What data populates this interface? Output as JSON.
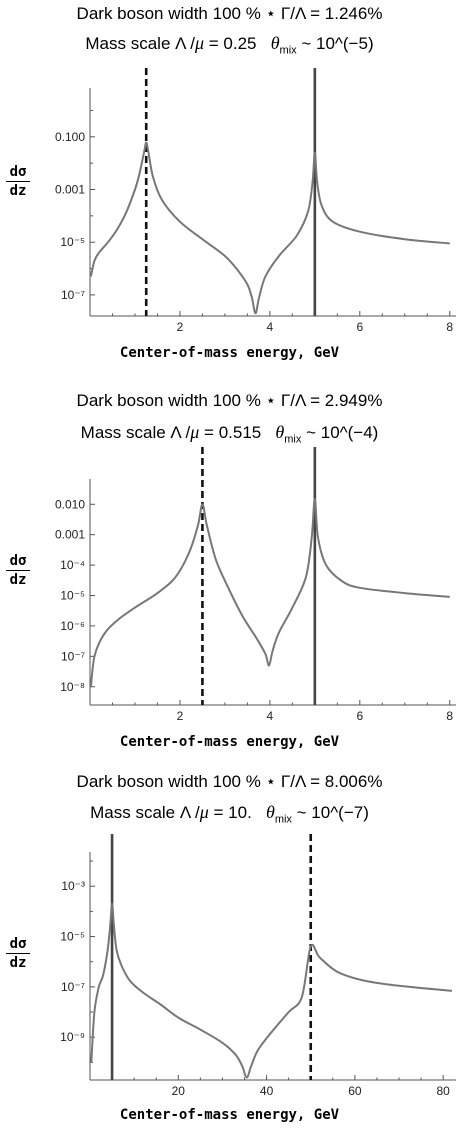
{
  "chart_data": [
    {
      "type": "line",
      "title_line1": "Dark boson width 100 % ⋆ Γ/Λ = 1.246%",
      "title_line2_pre": "Mass scale Λ /",
      "title_mu": "μ",
      "title_line2_mid": " = 0.25",
      "title_theta": "θ",
      "title_sub": "mix",
      "title_line2_post": " ~ 10^(−5)",
      "ylabel_num": "dσ",
      "ylabel_den": "dz",
      "xlabel": "Center-of-mass energy, GeV",
      "xlim": [
        0,
        8.05
      ],
      "ylog": true,
      "ylim_exp": [
        -7.8,
        0.7
      ],
      "xticks": [
        2,
        4,
        6,
        8
      ],
      "xtick_labels": [
        "2",
        "4",
        "6",
        "8"
      ],
      "yticks_exp": [
        -1,
        -3,
        -5,
        -7
      ],
      "ytick_labels": [
        "0.100",
        "0.001",
        "10⁻⁵",
        "10⁻⁷"
      ],
      "dashed_line_x": 1.25,
      "solid_line_x": 5.0,
      "series": [
        {
          "line_color": "#777777",
          "x": [
            0.02,
            0.1,
            0.2,
            0.4,
            0.6,
            0.8,
            1.0,
            1.1,
            1.2,
            1.25,
            1.3,
            1.4,
            1.6,
            2.0,
            2.5,
            3.0,
            3.3,
            3.5,
            3.6,
            3.68,
            3.76,
            3.9,
            4.2,
            4.6,
            4.85,
            4.95,
            5.0,
            5.05,
            5.15,
            5.4,
            6.0,
            7.0,
            8.0
          ],
          "y": [
            5e-07,
            2e-06,
            4e-06,
            1e-05,
            3e-05,
            0.00013,
            0.001,
            0.004,
            0.025,
            0.06,
            0.025,
            0.003,
            0.0004,
            6e-05,
            1.3e-05,
            3e-06,
            8e-07,
            2.5e-07,
            8e-08,
            2e-08,
            8e-08,
            5e-07,
            3e-06,
            1.8e-05,
            0.00015,
            0.002,
            0.025,
            0.002,
            0.00025,
            6e-05,
            2.5e-05,
            1.3e-05,
            9e-06
          ]
        }
      ]
    },
    {
      "type": "line",
      "title_line1": "Dark boson width 100 % ⋆ Γ/Λ = 2.949%",
      "title_line2_pre": "Mass scale Λ /",
      "title_mu": "μ",
      "title_line2_mid": " = 0.515",
      "title_theta": "θ",
      "title_sub": "mix",
      "title_line2_post": " ~ 10^(−4)",
      "ylabel_num": "dσ",
      "ylabel_den": "dz",
      "xlabel": "Center-of-mass energy, GeV",
      "xlim": [
        0,
        8.05
      ],
      "ylog": true,
      "ylim_exp": [
        -8.6,
        -1.3
      ],
      "xticks": [
        2,
        4,
        6,
        8
      ],
      "xtick_labels": [
        "2",
        "4",
        "6",
        "8"
      ],
      "yticks_exp": [
        -2,
        -3,
        -4,
        -5,
        -6,
        -7,
        -8
      ],
      "ytick_labels": [
        "0.010",
        "0.001",
        "10⁻⁴",
        "10⁻⁵",
        "10⁻⁶",
        "10⁻⁷",
        "10⁻⁸"
      ],
      "dashed_line_x": 2.5,
      "solid_line_x": 5.0,
      "series": [
        {
          "line_color": "#777777",
          "x": [
            0.02,
            0.1,
            0.3,
            0.6,
            1.0,
            1.5,
            1.9,
            2.2,
            2.4,
            2.5,
            2.6,
            2.8,
            3.1,
            3.4,
            3.7,
            3.9,
            3.98,
            4.06,
            4.2,
            4.5,
            4.8,
            4.93,
            5.0,
            5.07,
            5.25,
            5.6,
            6.0,
            7.0,
            8.0
          ],
          "y": [
            1e-08,
            1e-07,
            5e-07,
            1.5e-06,
            4e-06,
            1.2e-05,
            4e-05,
            0.00025,
            0.002,
            0.01,
            0.002,
            0.00015,
            1.5e-05,
            2e-06,
            4e-07,
            1.2e-07,
            5e-08,
            1.5e-07,
            6e-07,
            4e-06,
            4e-05,
            0.0008,
            0.015,
            0.0008,
            0.0001,
            3e-05,
            1.8e-05,
            1.2e-05,
            9e-06
          ]
        }
      ]
    },
    {
      "type": "line",
      "title_line1": "Dark boson width 100 % ⋆ Γ/Λ = 8.006%",
      "title_line2_pre": "Mass scale Λ /",
      "title_mu": "μ",
      "title_line2_mid": " = 10.",
      "title_theta": "θ",
      "title_sub": "mix",
      "title_line2_post": " ~ 10^(−7)",
      "ylabel_num": "dσ",
      "ylabel_den": "dz",
      "xlabel": "Center-of-mass energy, GeV",
      "xlim": [
        0,
        82
      ],
      "ylog": true,
      "ylim_exp": [
        -10.7,
        -1.8
      ],
      "xticks": [
        20,
        40,
        60,
        80
      ],
      "xtick_labels": [
        "20",
        "40",
        "60",
        "80"
      ],
      "yticks_exp": [
        -3,
        -5,
        -7,
        -9
      ],
      "ytick_labels": [
        "10⁻³",
        "10⁻⁵",
        "10⁻⁷",
        "10⁻⁹"
      ],
      "dashed_line_x": 50,
      "solid_line_x": 5,
      "series": [
        {
          "line_color": "#777777",
          "x": [
            0.3,
            1.0,
            2.0,
            3.0,
            4.0,
            4.6,
            5.0,
            5.4,
            6.0,
            7.0,
            9.0,
            12.0,
            16.0,
            20.0,
            25.0,
            30.0,
            33.0,
            34.5,
            35.5,
            36.5,
            38.0,
            41.0,
            45.0,
            48.0,
            50.0,
            52.0,
            56.0,
            62.0,
            70.0,
            82.0
          ],
          "y": [
            1e-10,
            1e-08,
            1e-07,
            3e-07,
            3e-06,
            3e-05,
            0.0002,
            3e-05,
            3e-06,
            8e-07,
            1.8e-07,
            6e-08,
            2e-08,
            6e-09,
            2e-09,
            6e-10,
            2e-10,
            7e-11,
            2.5e-11,
            7e-11,
            3e-10,
            1.5e-09,
            1e-08,
            4e-08,
            4e-06,
            1.5e-06,
            4e-07,
            1.8e-07,
            1.1e-07,
            7e-08
          ]
        }
      ]
    }
  ]
}
